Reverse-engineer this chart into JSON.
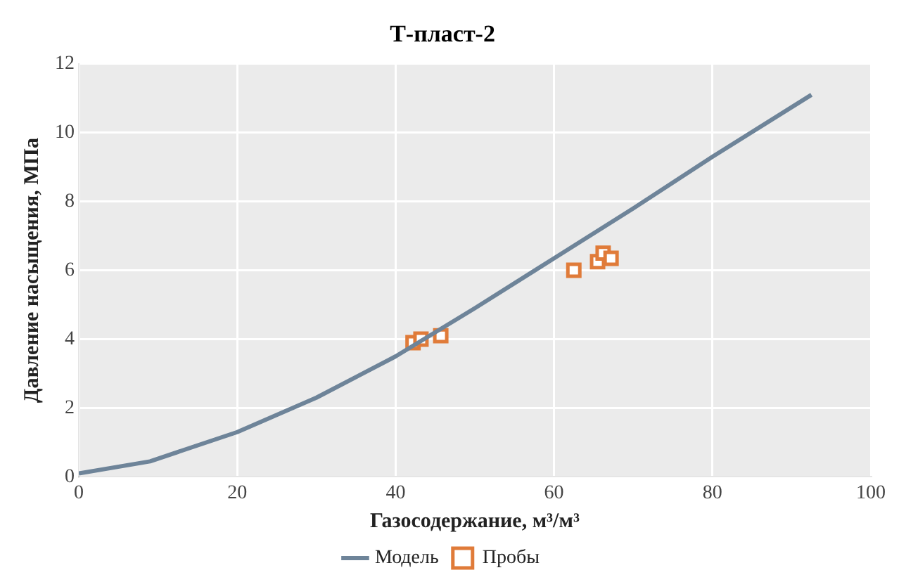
{
  "chart_data": {
    "type": "scatter",
    "title": "Т-пласт-2",
    "xlabel": "Газосодержание, м³/м³",
    "ylabel": "Давление насыщения, МПа",
    "xlim": [
      0,
      100
    ],
    "xticks": [
      0,
      20,
      40,
      60,
      80,
      100
    ],
    "ylim": [
      0,
      12
    ],
    "yticks": [
      0,
      2,
      4,
      6,
      8,
      10,
      12
    ],
    "grid": true,
    "legend": "bottom",
    "series": [
      {
        "name": "Модель",
        "type": "line",
        "color": "#6e8499",
        "marker": "none",
        "line_style": "solid",
        "x": [
          0,
          9,
          20,
          30,
          40,
          50,
          60,
          70,
          80,
          92.5
        ],
        "values": [
          0.1,
          0.45,
          1.3,
          2.3,
          3.5,
          4.9,
          6.35,
          7.8,
          9.3,
          11.1
        ]
      },
      {
        "name": "Пробы",
        "color": "#e07b39",
        "marker": "square",
        "x": [
          42.2,
          43.2,
          45.7,
          62.5,
          65.5,
          66.2,
          67.2
        ],
        "values": [
          3.9,
          4.0,
          4.1,
          6.0,
          6.25,
          6.5,
          6.35
        ]
      }
    ]
  }
}
